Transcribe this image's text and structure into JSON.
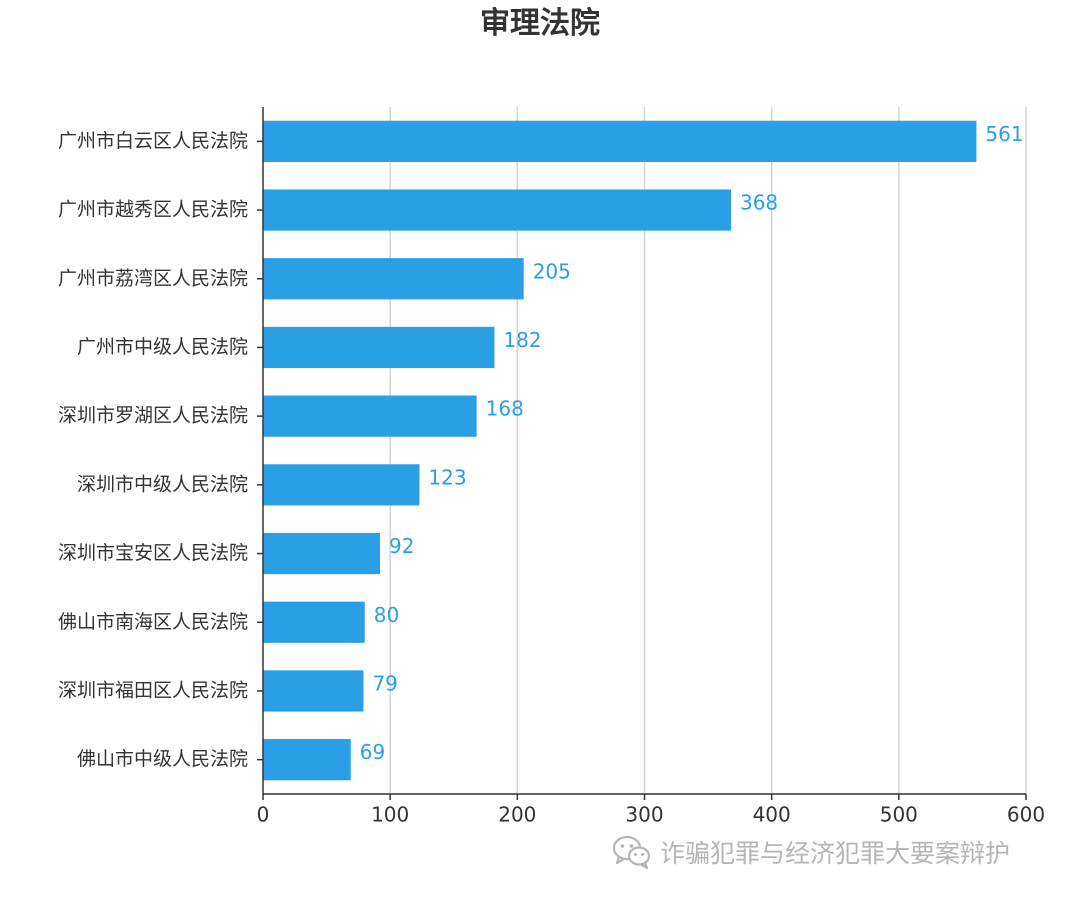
{
  "chart_data": {
    "type": "bar",
    "orientation": "horizontal",
    "title": "审理法院",
    "categories": [
      "广州市白云区人民法院",
      "广州市越秀区人民法院",
      "广州市荔湾区人民法院",
      "广州市中级人民法院",
      "深圳市罗湖区人民法院",
      "深圳市中级人民法院",
      "深圳市宝安区人民法院",
      "佛山市南海区人民法院",
      "深圳市福田区人民法院",
      "佛山市中级人民法院"
    ],
    "values": [
      561,
      368,
      205,
      182,
      168,
      123,
      92,
      80,
      79,
      69
    ],
    "xlim": [
      0,
      600
    ],
    "xticks": [
      0,
      100,
      200,
      300,
      400,
      500,
      600
    ],
    "grid": "vertical",
    "data_labels": true,
    "bar_color": "#2b9fe6",
    "label_color": "#2b9fe6",
    "text_color": "#333333",
    "grid_color": "#d3d3d3"
  },
  "watermark": {
    "text": "诈骗犯罪与经济犯罪大要案辩护",
    "icon": "wechat-icon"
  }
}
